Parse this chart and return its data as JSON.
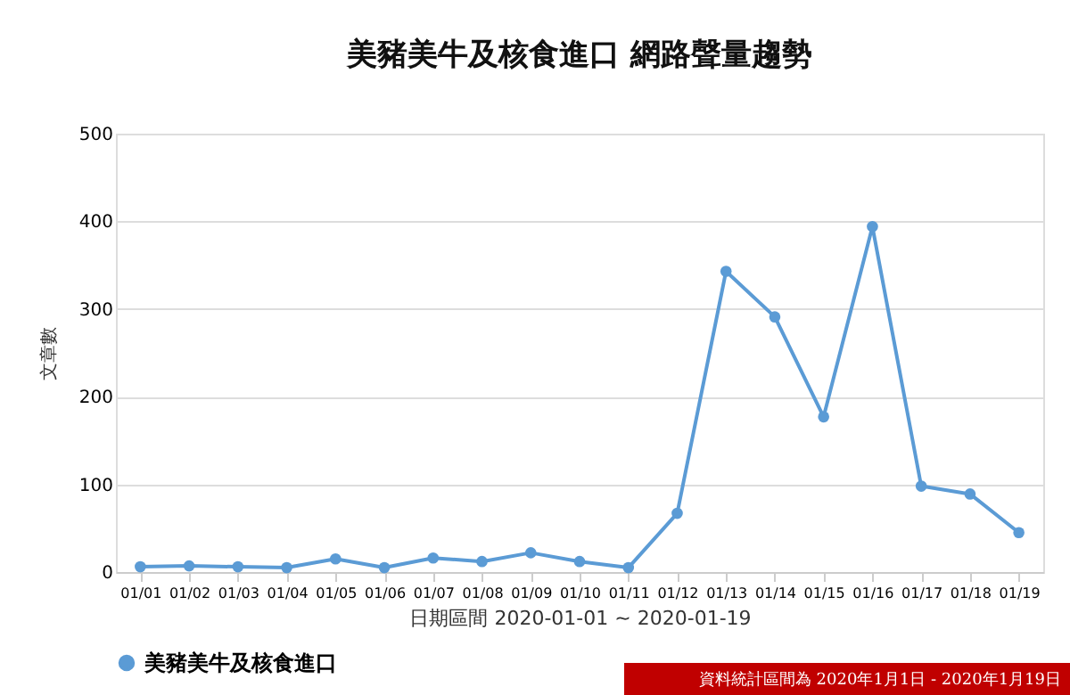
{
  "chart_data": {
    "type": "line",
    "title": "美豬美牛及核食進口 網路聲量趨勢",
    "xlabel": "日期區間 2020-01-01 ~ 2020-01-19",
    "ylabel": "文章數",
    "categories": [
      "01/01",
      "01/02",
      "01/03",
      "01/04",
      "01/05",
      "01/06",
      "01/07",
      "01/08",
      "01/09",
      "01/10",
      "01/11",
      "01/12",
      "01/13",
      "01/14",
      "01/15",
      "01/16",
      "01/17",
      "01/18",
      "01/19"
    ],
    "series": [
      {
        "name": "美豬美牛及核食進口",
        "color": "#5b9bd5",
        "values": [
          6,
          7,
          6,
          5,
          15,
          5,
          16,
          12,
          22,
          12,
          5,
          67,
          343,
          291,
          177,
          394,
          98,
          89,
          45
        ]
      }
    ],
    "ylim": [
      0,
      500
    ],
    "yticks": [
      0,
      100,
      200,
      300,
      400,
      500
    ],
    "grid": "y",
    "legend": "bottom",
    "marker": "circle",
    "line_style": "solid",
    "annotations": [
      "資料統計區間為 2020年1月1日 - 2020年1月19日"
    ]
  }
}
